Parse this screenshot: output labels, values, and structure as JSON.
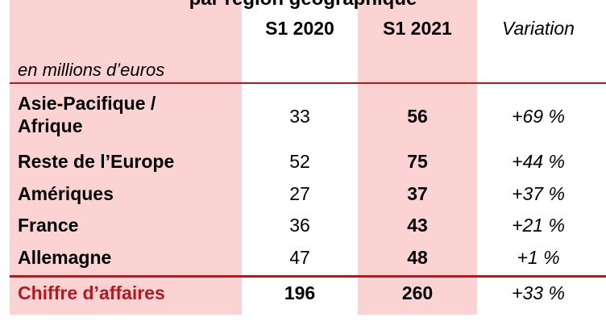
{
  "title": "par région géographique",
  "header": {
    "col_2020": "S1 2020",
    "col_2021": "S1 2021",
    "col_variation": "Variation",
    "unit": "en millions d’euros"
  },
  "rows": [
    {
      "label_line1": "Asie-Pacifique /",
      "label_line2": "Afrique",
      "s1_2020": "33",
      "s1_2021": "56",
      "variation": "+69 %"
    },
    {
      "label": "Reste de l’Europe",
      "s1_2020": "52",
      "s1_2021": "75",
      "variation": "+44 %"
    },
    {
      "label": "Amériques",
      "s1_2020": "27",
      "s1_2021": "37",
      "variation": "+37 %"
    },
    {
      "label": "France",
      "s1_2020": "36",
      "s1_2021": "43",
      "variation": "+21 %"
    },
    {
      "label": "Allemagne",
      "s1_2020": "47",
      "s1_2021": "48",
      "variation": "+1 %"
    }
  ],
  "total": {
    "label": "Chiffre d’affaires",
    "s1_2020": "196",
    "s1_2021": "260",
    "variation": "+33 %"
  },
  "colors": {
    "pink": "#fcd3d3",
    "accent_red": "#b3191e"
  }
}
